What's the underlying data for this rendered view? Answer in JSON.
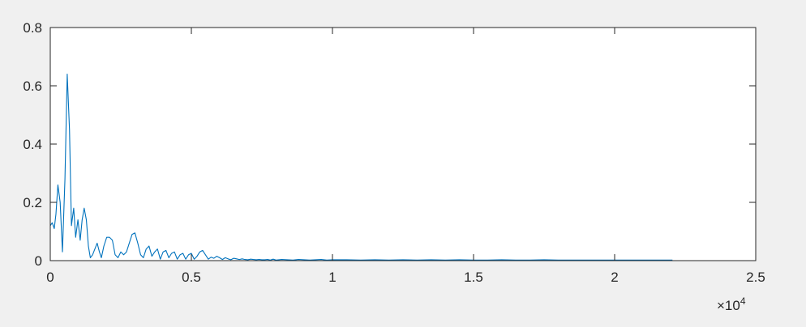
{
  "chart_data": {
    "type": "line",
    "title": "",
    "xlabel": "",
    "ylabel": "",
    "xlim": [
      0,
      25000
    ],
    "ylim": [
      0,
      0.8
    ],
    "x_ticks": [
      0,
      5000,
      10000,
      15000,
      20000,
      25000
    ],
    "x_tick_labels": [
      "0",
      "0.5",
      "1",
      "1.5",
      "2",
      "2.5"
    ],
    "x_exponent_label": {
      "base": "×10",
      "power": "4"
    },
    "y_ticks": [
      0,
      0.2,
      0.4,
      0.6,
      0.8
    ],
    "y_tick_labels": [
      "0",
      "0.2",
      "0.4",
      "0.6",
      "0.8"
    ],
    "grid": false,
    "legend": "none",
    "colors": {
      "line": "#0072bd",
      "axes": "#262626",
      "figure_bg": "#f0f0f0",
      "axes_bg": "#ffffff"
    },
    "series": [
      {
        "x": [
          0,
          70,
          140,
          200,
          270,
          350,
          430,
          520,
          600,
          680,
          750,
          830,
          900,
          980,
          1060,
          1130,
          1200,
          1280,
          1350,
          1420,
          1500,
          1580,
          1660,
          1740,
          1810,
          1900,
          2000,
          2100,
          2200,
          2300,
          2400,
          2500,
          2600,
          2700,
          2800,
          2900,
          3000,
          3100,
          3200,
          3300,
          3400,
          3500,
          3600,
          3700,
          3800,
          3900,
          4000,
          4100,
          4200,
          4300,
          4400,
          4500,
          4600,
          4700,
          4800,
          4900,
          5000,
          5100,
          5200,
          5300,
          5400,
          5500,
          5600,
          5700,
          5800,
          5900,
          6000,
          6100,
          6200,
          6300,
          6400,
          6500,
          6600,
          6700,
          6800,
          6900,
          7000,
          7100,
          7200,
          7300,
          7400,
          7500,
          7600,
          7700,
          7800,
          7900,
          8000,
          8200,
          8400,
          8600,
          8800,
          9000,
          9200,
          9400,
          9600,
          9800,
          10000,
          10500,
          11000,
          11500,
          12000,
          12500,
          13000,
          13500,
          14000,
          14500,
          15000,
          15500,
          16000,
          16500,
          17000,
          17500,
          18000,
          18500,
          19000,
          19500,
          20000,
          20500,
          21000,
          21500,
          22050
        ],
        "y": [
          0.12,
          0.13,
          0.11,
          0.16,
          0.26,
          0.2,
          0.03,
          0.28,
          0.64,
          0.45,
          0.12,
          0.18,
          0.08,
          0.14,
          0.07,
          0.14,
          0.18,
          0.14,
          0.05,
          0.01,
          0.02,
          0.04,
          0.06,
          0.03,
          0.01,
          0.05,
          0.08,
          0.08,
          0.07,
          0.02,
          0.01,
          0.03,
          0.02,
          0.03,
          0.06,
          0.09,
          0.095,
          0.06,
          0.02,
          0.01,
          0.04,
          0.05,
          0.015,
          0.03,
          0.04,
          0.005,
          0.03,
          0.035,
          0.01,
          0.025,
          0.03,
          0.005,
          0.02,
          0.025,
          0.005,
          0.02,
          0.025,
          0.005,
          0.015,
          0.03,
          0.035,
          0.02,
          0.005,
          0.012,
          0.008,
          0.015,
          0.01,
          0.004,
          0.01,
          0.006,
          0.003,
          0.008,
          0.006,
          0.004,
          0.006,
          0.004,
          0.003,
          0.005,
          0.004,
          0.003,
          0.004,
          0.003,
          0.003,
          0.004,
          0.002,
          0.005,
          0.002,
          0.004,
          0.003,
          0.002,
          0.004,
          0.003,
          0.002,
          0.003,
          0.004,
          0.002,
          0.003,
          0.003,
          0.002,
          0.003,
          0.002,
          0.003,
          0.002,
          0.003,
          0.002,
          0.003,
          0.002,
          0.002,
          0.003,
          0.002,
          0.002,
          0.003,
          0.002,
          0.002,
          0.002,
          0.002,
          0.002,
          0.002,
          0.002,
          0.002,
          0.002
        ]
      }
    ]
  }
}
